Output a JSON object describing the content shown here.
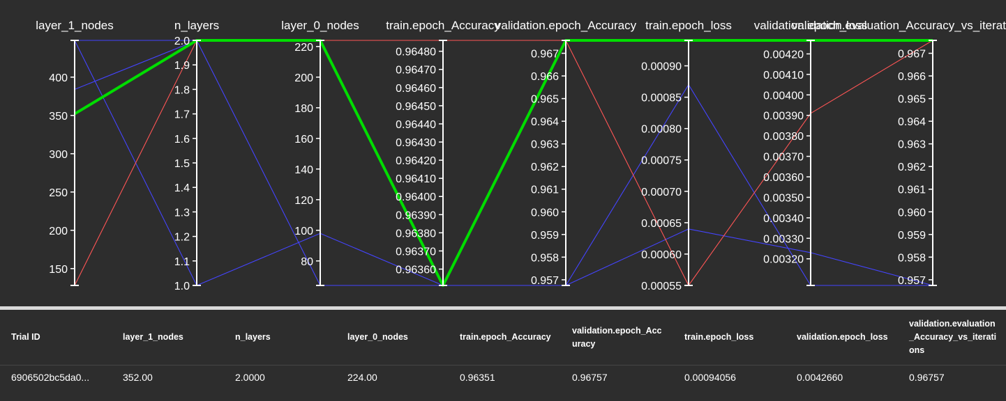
{
  "chart_data": {
    "type": "parallel_coordinates",
    "axes": [
      {
        "label": "layer_1_nodes",
        "range": [
          128,
          448
        ],
        "ticks": [
          "150",
          "200",
          "250",
          "300",
          "350",
          "400"
        ],
        "tick_values": [
          150,
          200,
          250,
          300,
          350,
          400
        ]
      },
      {
        "label": "n_layers",
        "range": [
          1.0,
          2.0
        ],
        "ticks": [
          "1.0",
          "1.1",
          "1.2",
          "1.3",
          "1.4",
          "1.5",
          "1.6",
          "1.7",
          "1.8",
          "1.9",
          "2.0"
        ],
        "tick_values": [
          1.0,
          1.1,
          1.2,
          1.3,
          1.4,
          1.5,
          1.6,
          1.7,
          1.8,
          1.9,
          2.0
        ]
      },
      {
        "label": "layer_0_nodes",
        "range": [
          64,
          224
        ],
        "ticks": [
          "80",
          "100",
          "120",
          "140",
          "160",
          "180",
          "200",
          "220"
        ],
        "tick_values": [
          80,
          100,
          120,
          140,
          160,
          180,
          200,
          220
        ]
      },
      {
        "label": "train.epoch_Accuracy",
        "range": [
          0.96351,
          0.96486
        ],
        "ticks": [
          "0.96360",
          "0.96370",
          "0.96380",
          "0.96390",
          "0.96400",
          "0.96410",
          "0.96420",
          "0.96430",
          "0.96440",
          "0.96450",
          "0.96460",
          "0.96470",
          "0.96480"
        ],
        "tick_values": [
          0.9636,
          0.9637,
          0.9638,
          0.9639,
          0.964,
          0.9641,
          0.9642,
          0.9643,
          0.9644,
          0.9645,
          0.9646,
          0.9647,
          0.9648
        ]
      },
      {
        "label": "validation.epoch_Accuracy",
        "range": [
          0.95675,
          0.96757
        ],
        "ticks": [
          "0.957",
          "0.958",
          "0.959",
          "0.960",
          "0.961",
          "0.962",
          "0.963",
          "0.964",
          "0.965",
          "0.966",
          "0.967"
        ],
        "tick_values": [
          0.957,
          0.958,
          0.959,
          0.96,
          0.961,
          0.962,
          0.963,
          0.964,
          0.965,
          0.966,
          0.967
        ]
      },
      {
        "label": "train.epoch_loss",
        "range": [
          0.00055,
          0.00094056
        ],
        "ticks": [
          "0.00055",
          "0.00060",
          "0.00065",
          "0.00070",
          "0.00075",
          "0.00080",
          "0.00085",
          "0.00090"
        ],
        "tick_values": [
          0.00055,
          0.0006,
          0.00065,
          0.0007,
          0.00075,
          0.0008,
          0.00085,
          0.0009
        ]
      },
      {
        "label": "validation.epoch_loss",
        "range": [
          0.00307,
          0.004266
        ],
        "ticks": [
          "0.00320",
          "0.00330",
          "0.00340",
          "0.00350",
          "0.00360",
          "0.00370",
          "0.00380",
          "0.00390",
          "0.00400",
          "0.00410",
          "0.00420"
        ],
        "tick_values": [
          0.0032,
          0.0033,
          0.0034,
          0.0035,
          0.0036,
          0.0037,
          0.0038,
          0.0039,
          0.004,
          0.0041,
          0.0042
        ]
      },
      {
        "label": "validation.evaluation_Accuracy_vs_iterations",
        "range": [
          0.95675,
          0.96757
        ],
        "ticks": [
          "0.957",
          "0.958",
          "0.959",
          "0.960",
          "0.961",
          "0.962",
          "0.963",
          "0.964",
          "0.965",
          "0.966",
          "0.967"
        ],
        "tick_values": [
          0.957,
          0.958,
          0.959,
          0.96,
          0.961,
          0.962,
          0.963,
          0.964,
          0.965,
          0.966,
          0.967
        ]
      }
    ],
    "series": [
      {
        "color": "#4444ff",
        "values": [
          448,
          2.0,
          224,
          0.96486,
          0.96757,
          0.00094056,
          0.004266,
          0.96757
        ]
      },
      {
        "color": "#4444ff",
        "values": [
          384,
          2.0,
          64,
          0.96351,
          0.95675,
          0.00087,
          0.00307,
          0.95675
        ]
      },
      {
        "color": "#4444ff",
        "values": [
          448,
          1.0,
          98,
          0.96351,
          0.95675,
          0.00064,
          0.00323,
          0.95675
        ]
      },
      {
        "color": "#ff5555",
        "values": [
          128,
          2.0,
          224,
          0.96486,
          0.96757,
          0.00055,
          0.00391,
          0.96757
        ]
      },
      {
        "color": "#00dd00",
        "highlighted": true,
        "values": [
          352,
          2.0,
          224,
          0.96351,
          0.96757,
          0.00094056,
          0.004266,
          0.96757
        ]
      }
    ]
  },
  "table": {
    "headers": [
      "Trial ID",
      "layer_1_nodes",
      "n_layers",
      "layer_0_nodes",
      "train.epoch_Accuracy",
      "validation.epoch_Accuracy",
      "train.epoch_loss",
      "validation.epoch_loss",
      "validation.evaluation_Accuracy_vs_iterations"
    ],
    "rows": [
      {
        "trial_id": "6906502bc5da0...",
        "cells": [
          "352.00",
          "2.0000",
          "224.00",
          "0.96351",
          "0.96757",
          "0.00094056",
          "0.0042660",
          "0.96757"
        ]
      }
    ]
  },
  "colors": {
    "background": "#2d2d2d",
    "axis": "#ffffff",
    "divider": "#d9d9d9"
  }
}
